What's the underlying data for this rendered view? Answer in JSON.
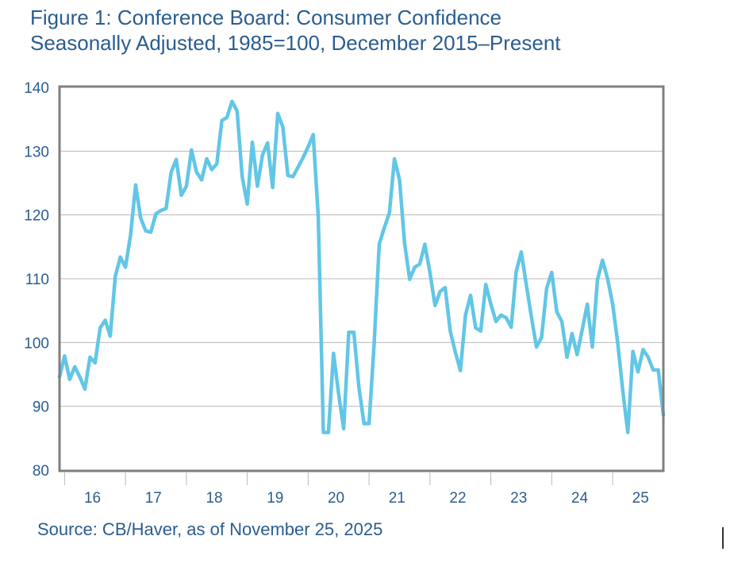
{
  "chart_data": {
    "type": "line",
    "title": "Figure 1: Conference Board: Consumer Confidence",
    "subtitle": "Seasonally Adjusted, 1985=100, December 2015–Present",
    "source": "Source: CB/Haver, as of November 25, 2025",
    "xlabel": "",
    "ylabel": "",
    "ylim": [
      80,
      140
    ],
    "yticks": [
      80,
      90,
      100,
      110,
      120,
      130,
      140
    ],
    "ytick_labels": [
      "80",
      "90",
      "100",
      "110",
      "120",
      "130",
      "140"
    ],
    "xtick_labels": [
      "16",
      "17",
      "18",
      "19",
      "20",
      "21",
      "22",
      "23",
      "24",
      "25"
    ],
    "x_start": "2015-12",
    "x_end": "2025-11",
    "x_frequency": "monthly",
    "grid": "horizontal",
    "line_color": "#62c6e6",
    "series": [
      {
        "values": [
          94.6,
          97.9,
          94.2,
          96.2,
          94.6,
          92.7,
          97.7,
          96.8,
          102.3,
          103.5,
          101.0,
          110.4,
          113.4,
          111.8,
          116.8,
          124.7,
          119.5,
          117.5,
          117.3,
          120.2,
          120.7,
          121.0,
          126.7,
          128.7,
          123.1,
          124.5,
          130.2,
          126.7,
          125.5,
          128.8,
          127.1,
          128.0,
          134.8,
          135.3,
          137.8,
          136.3,
          126.0,
          121.7,
          131.4,
          124.5,
          129.4,
          131.3,
          124.3,
          135.9,
          133.8,
          126.2,
          126.0,
          127.5,
          129.0,
          130.7,
          132.6,
          119.7,
          85.9,
          85.9,
          98.3,
          92.0,
          86.5,
          101.6,
          101.6,
          93.0,
          87.3,
          87.3,
          99.8,
          115.4,
          118.0,
          120.3,
          128.8,
          125.5,
          115.5,
          109.9,
          111.8,
          112.3,
          115.4,
          111.0,
          105.8,
          108.0,
          108.6,
          101.8,
          98.5,
          95.6,
          104.3,
          107.4,
          102.3,
          101.8,
          109.1,
          106.0,
          103.3,
          104.3,
          103.9,
          102.4,
          111.1,
          114.2,
          109.0,
          104.0,
          99.3,
          100.8,
          108.5,
          111.0,
          104.8,
          103.3,
          97.7,
          101.4,
          98.1,
          102.0,
          106.0,
          99.3,
          109.8,
          112.9,
          110.0,
          106.0,
          100.0,
          92.5,
          85.9,
          98.6,
          95.4,
          98.9,
          97.7,
          95.7,
          95.7,
          88.6
        ]
      }
    ]
  }
}
